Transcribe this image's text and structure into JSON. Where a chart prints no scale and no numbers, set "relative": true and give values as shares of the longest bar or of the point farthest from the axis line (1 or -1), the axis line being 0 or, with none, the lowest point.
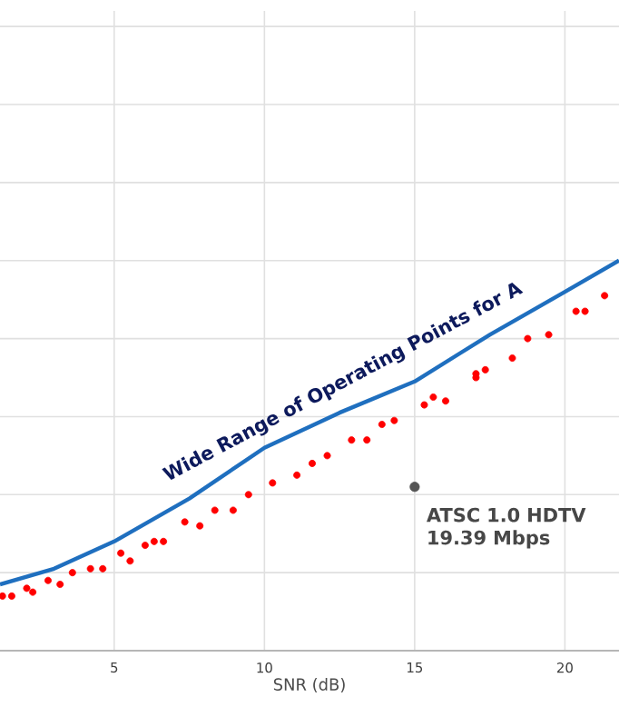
{
  "chart_data": {
    "type": "scatter",
    "xlabel": "SNR (dB)",
    "xlim": [
      1.2,
      21.8
    ],
    "xticks": [
      5,
      10,
      15,
      20
    ],
    "grid": true,
    "relative": true,
    "annotations": [
      "Wide Range of Operating Points for A",
      {
        "text": "ATSC 1.0 HDTV 19.39 Mbps",
        "x": 15,
        "y": 0.42
      }
    ],
    "series": [
      {
        "type": "line",
        "color": "#1f6fbf",
        "marker": "none",
        "line_style": "solid",
        "x": [
          1.2,
          3,
          5,
          7.5,
          10,
          12.5,
          15,
          17.5,
          20,
          21.8
        ],
        "values": [
          0.17,
          0.21,
          0.28,
          0.39,
          0.52,
          0.61,
          0.69,
          0.81,
          0.92,
          1
        ]
      },
      {
        "color": "#ff0000",
        "marker": "circle",
        "x": [
          1.28,
          1.59,
          2.09,
          2.29,
          2.8,
          3.2,
          3.61,
          4.21,
          4.62,
          5.22,
          5.53,
          6.03,
          6.33,
          6.64,
          7.35,
          7.85,
          8.35,
          8.96,
          9.47,
          10.27,
          11.08,
          11.59,
          12.09,
          12.9,
          13.41,
          13.91,
          14.32,
          15.32,
          15.62,
          16.03,
          17.04,
          17.04,
          17.35,
          18.25,
          18.76,
          19.46,
          20.37,
          20.67,
          21.32
        ],
        "values": [
          0.14,
          0.14,
          0.16,
          0.15,
          0.18,
          0.17,
          0.2,
          0.21,
          0.21,
          0.25,
          0.23,
          0.27,
          0.28,
          0.28,
          0.33,
          0.32,
          0.36,
          0.36,
          0.4,
          0.43,
          0.45,
          0.48,
          0.5,
          0.54,
          0.54,
          0.58,
          0.59,
          0.63,
          0.65,
          0.64,
          0.71,
          0.7,
          0.72,
          0.75,
          0.8,
          0.81,
          0.87,
          0.87,
          0.91
        ]
      },
      {
        "color": "#555555",
        "marker": "circle",
        "x": [
          15
        ],
        "values": [
          0.42
        ]
      }
    ]
  }
}
